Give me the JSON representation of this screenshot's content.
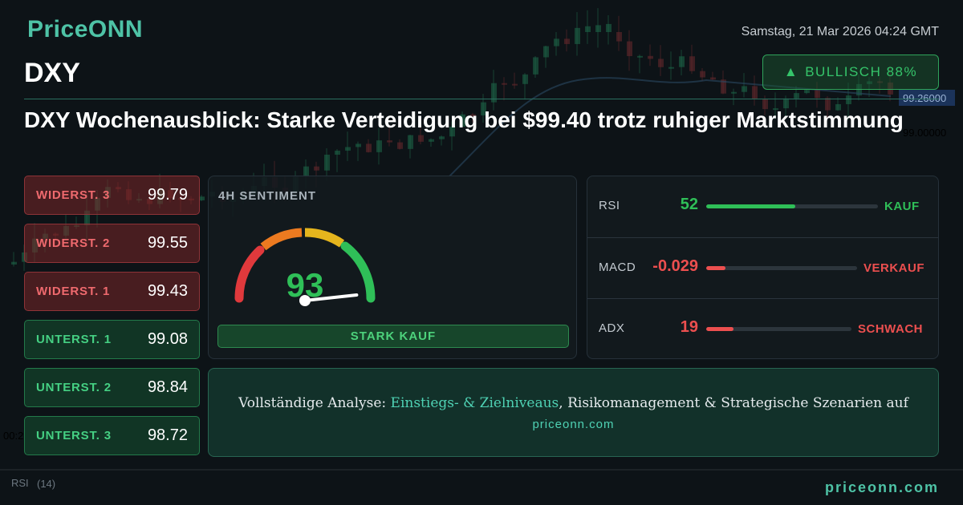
{
  "brand": {
    "logo": "PriceONN",
    "footer_url": "priceonn.com"
  },
  "header": {
    "symbol": "DXY",
    "datetime": "Samstag, 21 Mar 2026 04:24 GMT",
    "bias": {
      "arrow": "▲",
      "label": "BULLISCH 88%"
    },
    "headline": "DXY Wochenausblick: Starke Verteidigung bei $99.40 trotz ruhiger Marktstimmung"
  },
  "levels": [
    {
      "label": "WIDERST. 3",
      "value": "99.79",
      "kind": "resistance"
    },
    {
      "label": "WIDERST. 2",
      "value": "99.55",
      "kind": "resistance"
    },
    {
      "label": "WIDERST. 1",
      "value": "99.43",
      "kind": "resistance"
    },
    {
      "label": "UNTERST. 1",
      "value": "99.08",
      "kind": "support"
    },
    {
      "label": "UNTERST. 2",
      "value": "98.84",
      "kind": "support"
    },
    {
      "label": "UNTERST. 3",
      "value": "98.72",
      "kind": "support"
    }
  ],
  "sentiment": {
    "title": "4H SENTIMENT",
    "score": "93",
    "score_fraction": 0.93,
    "verdict": "STARK KAUF"
  },
  "indicators": [
    {
      "name": "RSI",
      "value": "52",
      "signal": "KAUF",
      "level": 0.52,
      "color": "#2fbf58"
    },
    {
      "name": "MACD",
      "value": "-0.029",
      "signal": "VERKAUF",
      "level": 0.13,
      "color": "#ec4f4f"
    },
    {
      "name": "ADX",
      "value": "19",
      "signal": "SCHWACH",
      "level": 0.19,
      "color": "#ec4f4f"
    }
  ],
  "cta": {
    "prefix": "Vollständige Analyse: ",
    "highlight": "Einstiegs- & Zielniveaus",
    "suffix": ", Risikomanagement & Strategische Szenarien auf",
    "url": "priceonn.com"
  },
  "background_chart": {
    "price_labels": [
      "99.26000",
      "99.00000"
    ],
    "time_label": "00:2",
    "rsi_label": "RSI",
    "rsi_period": "(14)"
  },
  "colors": {
    "accent": "#4ec3a6",
    "bullish": "#2fbf58",
    "bearish": "#ec4f4f"
  }
}
